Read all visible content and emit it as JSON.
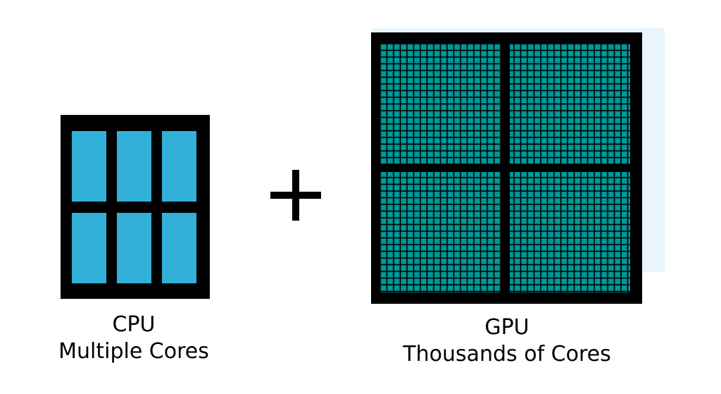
{
  "cpu": {
    "title": "CPU",
    "subtitle": "Multiple Cores",
    "core_color": "#33b0d8",
    "core_rows": 2,
    "core_cols": 3
  },
  "operator": "+",
  "gpu": {
    "title": "GPU",
    "subtitle": "Thousands of Cores",
    "core_color": "#009999",
    "backdrop_color": "#e8f5fd"
  }
}
